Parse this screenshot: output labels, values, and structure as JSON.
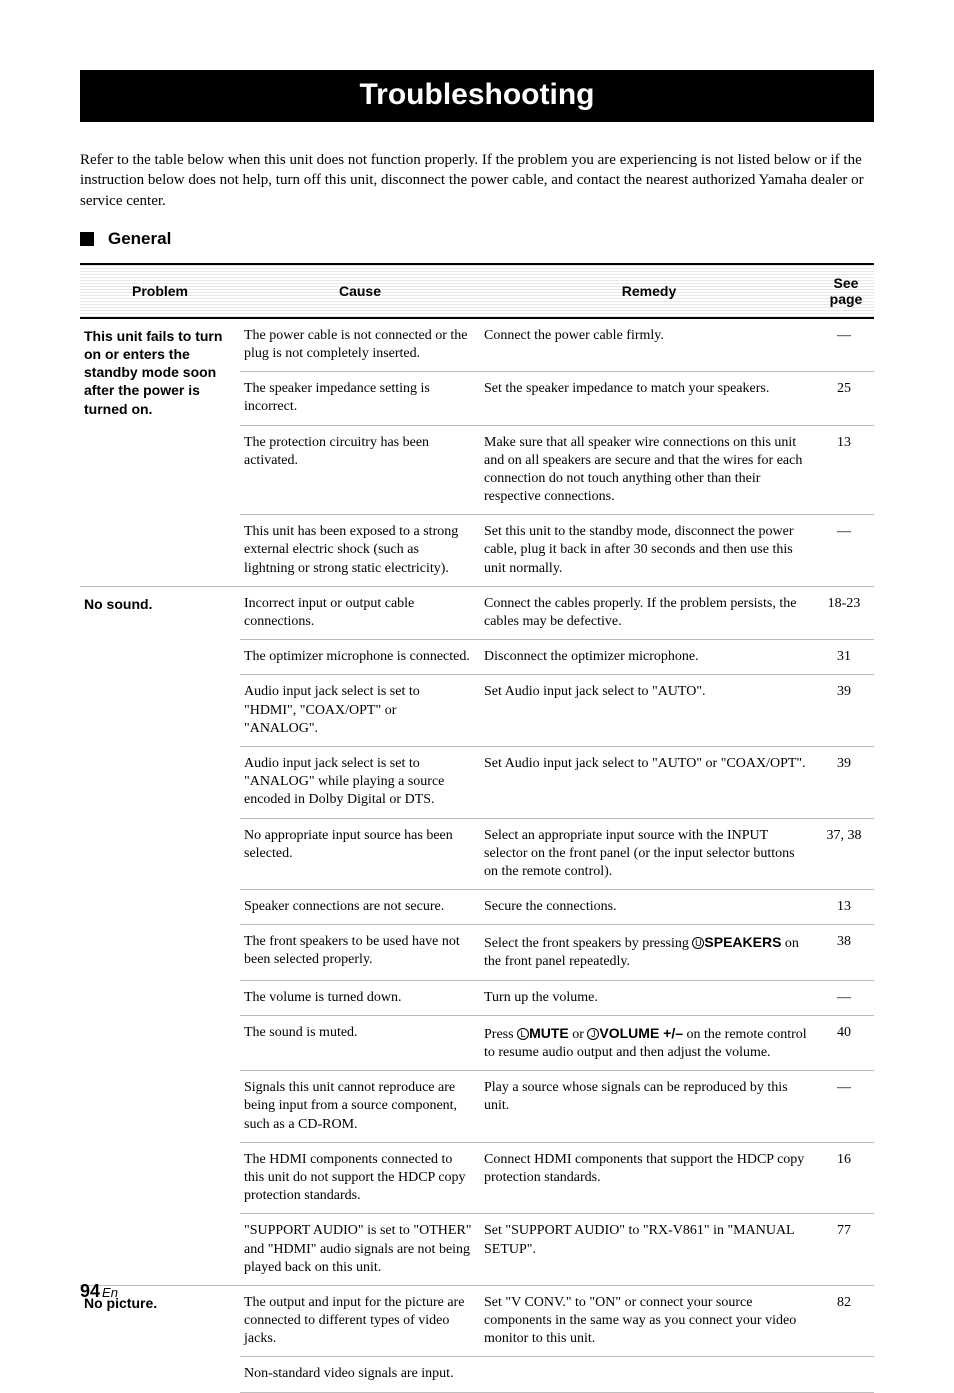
{
  "title": "Troubleshooting",
  "intro": "Refer to the table below when this unit does not function properly. If the problem you are experiencing is not listed below or if the instruction below does not help, turn off this unit, disconnect the power cable, and contact the nearest authorized Yamaha dealer or service center.",
  "section": "General",
  "headers": {
    "problem": "Problem",
    "cause": "Cause",
    "remedy": "Remedy",
    "page": "See page"
  },
  "rows": [
    {
      "group": "p1",
      "problem": "This unit fails to turn on or enters the standby mode soon after the power is turned on.",
      "cause": "The power cable is not connected or the plug is not completely inserted.",
      "remedy": "Connect the power cable firmly.",
      "page": "—"
    },
    {
      "group": "p1",
      "cause": "The speaker impedance setting is incorrect.",
      "remedy": "Set the speaker impedance to match your speakers.",
      "page": "25"
    },
    {
      "group": "p1",
      "cause": "The protection circuitry has been activated.",
      "remedy": "Make sure that all speaker wire connections on this unit and on all speakers are secure and that the wires for each connection do not touch anything other than their respective connections.",
      "page": "13"
    },
    {
      "group": "p1",
      "cause": "This unit has been exposed to a strong external electric shock (such as lightning or strong static electricity).",
      "remedy": "Set this unit to the standby mode, disconnect the power cable, plug it back in after 30 seconds and then use this unit normally.",
      "page": "—"
    },
    {
      "group": "p2",
      "problem": "No sound.",
      "cause": "Incorrect input or output cable connections.",
      "remedy": "Connect the cables properly. If the problem persists, the cables may be defective.",
      "page": "18-23"
    },
    {
      "group": "p2",
      "cause": "The optimizer microphone is connected.",
      "remedy": "Disconnect the optimizer microphone.",
      "page": "31"
    },
    {
      "group": "p2",
      "cause": "Audio input jack select is set to \"HDMI\", \"COAX/OPT\" or \"ANALOG\".",
      "remedy": "Set Audio input jack select to \"AUTO\".",
      "page": "39"
    },
    {
      "group": "p2",
      "cause": "Audio input jack select is set to \"ANALOG\" while playing a source encoded in Dolby Digital or DTS.",
      "remedy": "Set Audio input jack select to \"AUTO\" or \"COAX/OPT\".",
      "page": "39"
    },
    {
      "group": "p2",
      "cause": "No appropriate input source has been selected.",
      "remedy": "Select an appropriate input source with the INPUT selector on the front panel (or the input selector buttons on the remote control).",
      "page": "37, 38"
    },
    {
      "group": "p2",
      "cause": "Speaker connections are not secure.",
      "remedy": "Secure the connections.",
      "page": "13"
    },
    {
      "group": "p2",
      "cause": "The front speakers to be used have not been selected properly.",
      "remedy_html": "Select the front speakers by pressing <span class='circ'>U</span><span class='bold'>SPEAKERS</span> on the front panel repeatedly.",
      "page": "38"
    },
    {
      "group": "p2",
      "cause": "The volume is turned down.",
      "remedy": "Turn up the volume.",
      "page": "—"
    },
    {
      "group": "p2",
      "cause": "The sound is muted.",
      "remedy_html": "Press <span class='circ'>L</span><span class='bold'>MUTE</span> or <span class='circ'>J</span><span class='bold'>VOLUME +/–</span> on the remote control to resume audio output and then adjust the volume.",
      "page": "40"
    },
    {
      "group": "p2",
      "cause": "Signals this unit cannot reproduce are being input from a source component, such as a CD-ROM.",
      "remedy": "Play a source whose signals can be reproduced by this unit.",
      "page": "—"
    },
    {
      "group": "p2",
      "cause": "The HDMI components connected to this unit do not support the HDCP copy protection standards.",
      "remedy": "Connect HDMI components that support the HDCP copy protection standards.",
      "page": "16"
    },
    {
      "group": "p2",
      "cause": "\"SUPPORT AUDIO\" is set to \"OTHER\" and \"HDMI\" audio signals are not being played back on this unit.",
      "remedy": "Set \"SUPPORT AUDIO\" to \"RX-V861\" in \"MANUAL SETUP\".",
      "page": "77"
    },
    {
      "group": "p3",
      "problem": "No picture.",
      "cause": "The output and input for the picture are connected to different types of video jacks.",
      "remedy": "Set \"V CONV.\" to \"ON\" or connect your source components in the same way as you connect your video monitor to this unit.",
      "page": "82"
    },
    {
      "group": "p3",
      "cause": "Non-standard video signals are input.",
      "remedy": "",
      "page": ""
    }
  ],
  "footer": {
    "page": "94",
    "suffix": "En"
  }
}
